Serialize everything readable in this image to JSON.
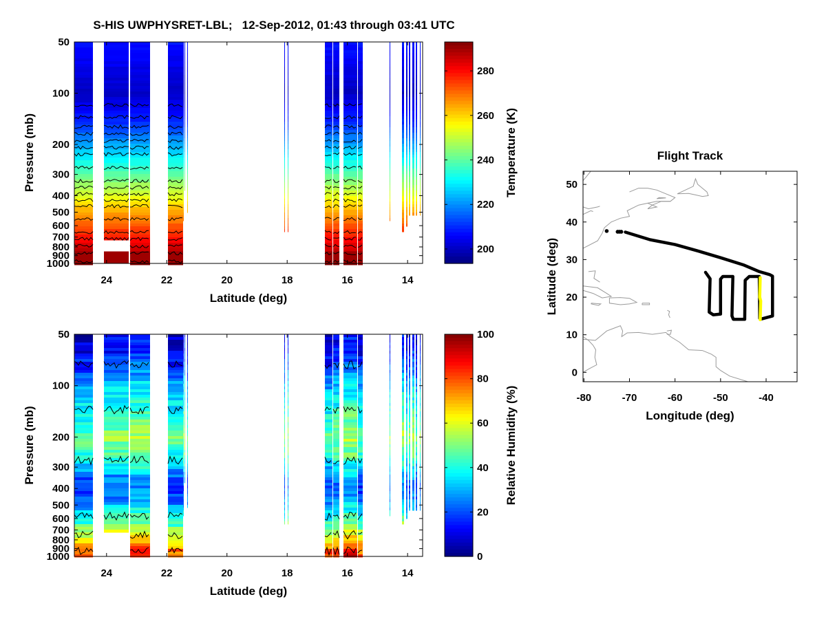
{
  "figure": {
    "title": "S-HIS UWPHYSRET-LBL;   12-Sep-2012, 01:43 through 03:41 UTC"
  },
  "chart_data": [
    {
      "type": "heatmap",
      "name": "temperature-curtain",
      "title": "",
      "xlabel": "Latitude (deg)",
      "ylabel": "Pressure (mb)",
      "xlim": [
        25.07,
        13.5
      ],
      "ylim": [
        50,
        1000
      ],
      "yscale": "log",
      "xticks": [
        24,
        22,
        20,
        18,
        16,
        14
      ],
      "xtick_labels": [
        "24",
        "22",
        "20",
        "18",
        "16",
        "14"
      ],
      "yticks": [
        50,
        100,
        200,
        300,
        400,
        500,
        600,
        700,
        800,
        900,
        1000
      ],
      "ytick_labels": [
        "50",
        "100",
        "200",
        "300",
        "400",
        "500",
        "600",
        "700",
        "800",
        "900",
        "1000"
      ],
      "colorbar": {
        "label": "Temperature (K)",
        "range": [
          193.5,
          293
        ],
        "ticks": [
          200,
          220,
          240,
          260,
          280
        ],
        "tick_labels": [
          "200",
          "220",
          "240",
          "260",
          "280"
        ],
        "colormap": "jet"
      },
      "profile": {
        "pressure": [
          50,
          70,
          100,
          150,
          200,
          250,
          300,
          400,
          500,
          600,
          700,
          850,
          1000
        ],
        "value": [
          208,
          204,
          200,
          210,
          222,
          232,
          240,
          253,
          264,
          272,
          279,
          287,
          293
        ]
      },
      "contours": true
    },
    {
      "type": "heatmap",
      "name": "humidity-curtain",
      "title": "",
      "xlabel": "Latitude (deg)",
      "ylabel": "Pressure (mb)",
      "xlim": [
        25.07,
        13.5
      ],
      "ylim": [
        50,
        1000
      ],
      "yscale": "log",
      "xticks": [
        24,
        22,
        20,
        18,
        16,
        14
      ],
      "xtick_labels": [
        "24",
        "22",
        "20",
        "18",
        "16",
        "14"
      ],
      "yticks": [
        50,
        100,
        200,
        300,
        400,
        500,
        600,
        700,
        800,
        900,
        1000
      ],
      "ytick_labels": [
        "50",
        "100",
        "200",
        "300",
        "400",
        "500",
        "600",
        "700",
        "800",
        "900",
        "1000"
      ],
      "colorbar": {
        "label": "Relative Humidity (%)",
        "range": [
          0,
          100
        ],
        "ticks": [
          0,
          20,
          40,
          60,
          80,
          100
        ],
        "tick_labels": [
          "0",
          "20",
          "40",
          "60",
          "80",
          "100"
        ],
        "colormap": "jet"
      },
      "profile": {
        "pressure": [
          50,
          65,
          80,
          100,
          150,
          200,
          250,
          300,
          350,
          400,
          500,
          600,
          700,
          800,
          900,
          1000
        ],
        "value": [
          10,
          15,
          22,
          32,
          42,
          52,
          45,
          35,
          25,
          20,
          30,
          42,
          55,
          65,
          78,
          85
        ]
      },
      "contours": true
    },
    {
      "type": "line",
      "name": "flight-track",
      "title": "Flight Track",
      "xlabel": "Longitude (deg)",
      "ylabel": "Latitude (deg)",
      "xlim": [
        -80.2,
        -33.2
      ],
      "ylim": [
        -2.5,
        53.5
      ],
      "xticks": [
        -80,
        -70,
        -60,
        -50,
        -40
      ],
      "xtick_labels": [
        "-80",
        "-70",
        "-60",
        "-50",
        "-40"
      ],
      "yticks": [
        0,
        10,
        20,
        30,
        40,
        50
      ],
      "ytick_labels": [
        "0",
        "10",
        "20",
        "30",
        "40",
        "50"
      ],
      "series": [
        {
          "name": "full-track",
          "color": "#000000",
          "points": [
            [
              -70.9,
              37.3
            ],
            [
              -65.5,
              35.3
            ],
            [
              -60,
              34.0
            ],
            [
              -55,
              32.3
            ],
            [
              -50,
              30.5
            ],
            [
              -45,
              28.6
            ],
            [
              -41.5,
              26.8
            ],
            [
              -39.2,
              26.0
            ],
            [
              -38.6,
              25.6
            ],
            [
              -38.6,
              15.0
            ],
            [
              -41.0,
              14.2
            ],
            [
              -41.4,
              14.4
            ],
            [
              -41.5,
              25.5
            ],
            [
              -43.7,
              25.5
            ],
            [
              -44.6,
              24.5
            ],
            [
              -44.7,
              14.1
            ],
            [
              -47.2,
              14.1
            ],
            [
              -47.5,
              15.0
            ],
            [
              -47.3,
              25.5
            ],
            [
              -49.5,
              25.5
            ],
            [
              -50.0,
              24.8
            ],
            [
              -50.0,
              15.5
            ],
            [
              -51.6,
              15.3
            ],
            [
              -52.5,
              16.0
            ],
            [
              -52.3,
              24.9
            ],
            [
              -53.3,
              26.6
            ]
          ]
        },
        {
          "name": "curtain-segment",
          "color": "#ffff00",
          "points": [
            [
              -41.3,
              25.2
            ],
            [
              -41.4,
              20.0
            ],
            [
              -41.2,
              19.0
            ],
            [
              -41.3,
              14.0
            ]
          ]
        },
        {
          "name": "departure-markers",
          "color": "#000000",
          "points": [
            [
              -75.0,
              37.6
            ],
            [
              -72.6,
              37.4
            ],
            [
              -72.2,
              37.4
            ],
            [
              -71.8,
              37.4
            ]
          ]
        }
      ],
      "coastline_color": "#999999"
    }
  ]
}
